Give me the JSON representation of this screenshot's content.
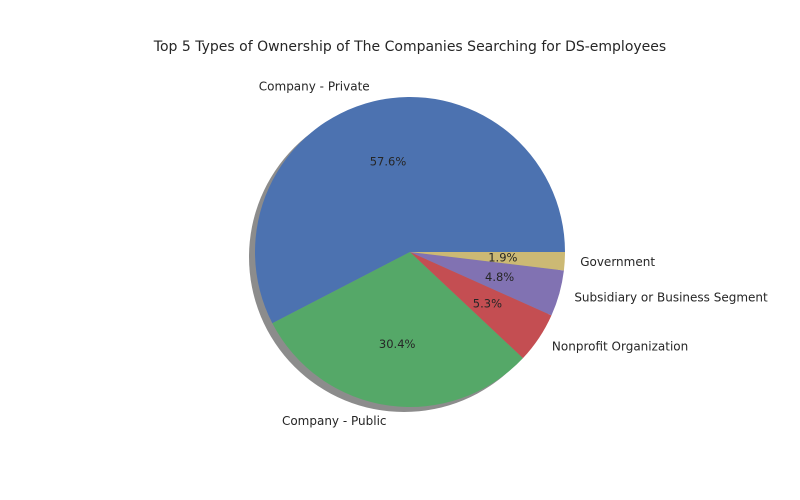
{
  "chart_data": {
    "type": "pie",
    "title": "Top 5 Types of Ownership of The Companies Searching for DS-employees",
    "slices": [
      {
        "label": "Company - Private",
        "value": 57.6,
        "pct_label": "57.6%",
        "color": "#4c72b0"
      },
      {
        "label": "Company - Public",
        "value": 30.4,
        "pct_label": "30.4%",
        "color": "#55a868"
      },
      {
        "label": "Nonprofit Organization",
        "value": 5.3,
        "pct_label": "5.3%",
        "color": "#c44e52"
      },
      {
        "label": "Subsidiary or Business Segment",
        "value": 4.8,
        "pct_label": "4.8%",
        "color": "#8172b2"
      },
      {
        "label": "Government",
        "value": 1.9,
        "pct_label": "1.9%",
        "color": "#ccb974"
      }
    ],
    "start_angle": "0deg (3 o'clock), counter-clockwise",
    "shadow": true,
    "legend": "none"
  }
}
